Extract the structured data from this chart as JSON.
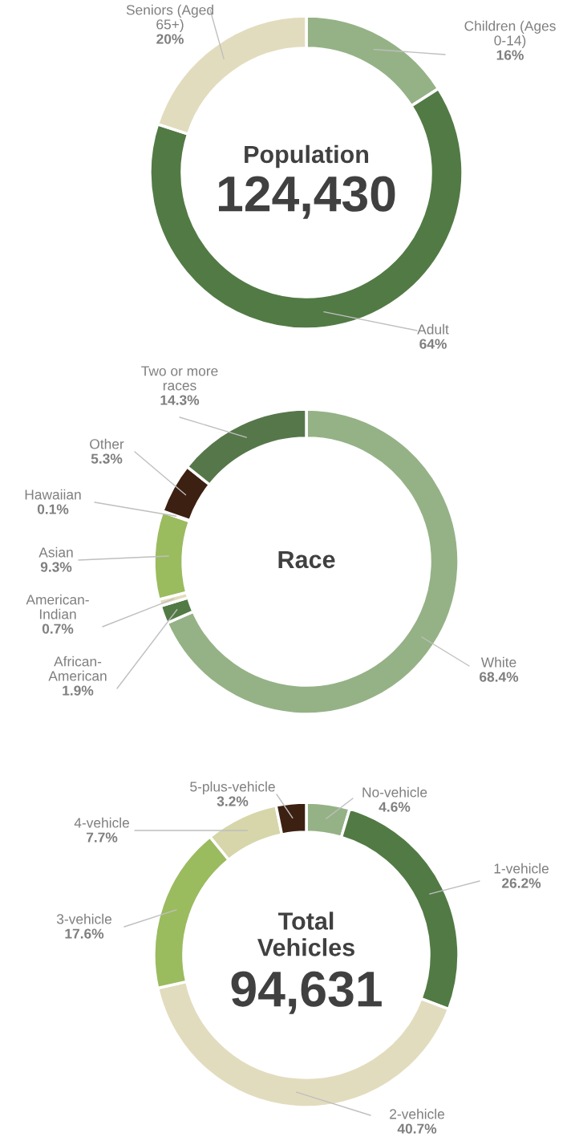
{
  "chart_data": [
    {
      "type": "donut",
      "title": "Population",
      "annotations": [
        "124,430"
      ],
      "categories": [
        "Children (Ages 0-14)",
        "Adult",
        "Seniors (Aged 65+)"
      ],
      "values": [
        16,
        64,
        20
      ],
      "value_labels": [
        "16%",
        "64%",
        "20%"
      ],
      "colors": [
        "#95b286",
        "#527a45",
        "#e2dcbe"
      ]
    },
    {
      "type": "donut",
      "title": "Race",
      "categories": [
        "White",
        "African-American",
        "American-Indian",
        "Asian",
        "Hawaiian",
        "Other",
        "Two or more races"
      ],
      "values": [
        68.4,
        1.9,
        0.7,
        9.3,
        0.1,
        5.3,
        14.3
      ],
      "value_labels": [
        "68.4%",
        "1.9%",
        "0.7%",
        "9.3%",
        "0.1%",
        "5.3%",
        "14.3%"
      ],
      "colors": [
        "#95b286",
        "#527a45",
        "#e2dcbe",
        "#9bbb5f",
        "#d6d6aa",
        "#3c2012",
        "#56774a"
      ]
    },
    {
      "type": "donut",
      "title": "Total Vehicles",
      "annotations": [
        "94,631"
      ],
      "categories": [
        "No-vehicle",
        "1-vehicle",
        "2-vehicle",
        "3-vehicle",
        "4-vehicle",
        "5-plus-vehicle"
      ],
      "values": [
        4.6,
        26.2,
        40.7,
        17.6,
        7.7,
        3.2
      ],
      "value_labels": [
        "4.6%",
        "26.2%",
        "40.7%",
        "17.6%",
        "7.7%",
        "3.2%"
      ],
      "colors": [
        "#95b286",
        "#527a45",
        "#e2dcbe",
        "#9bbb5f",
        "#d6d6aa",
        "#3c2012"
      ]
    }
  ]
}
